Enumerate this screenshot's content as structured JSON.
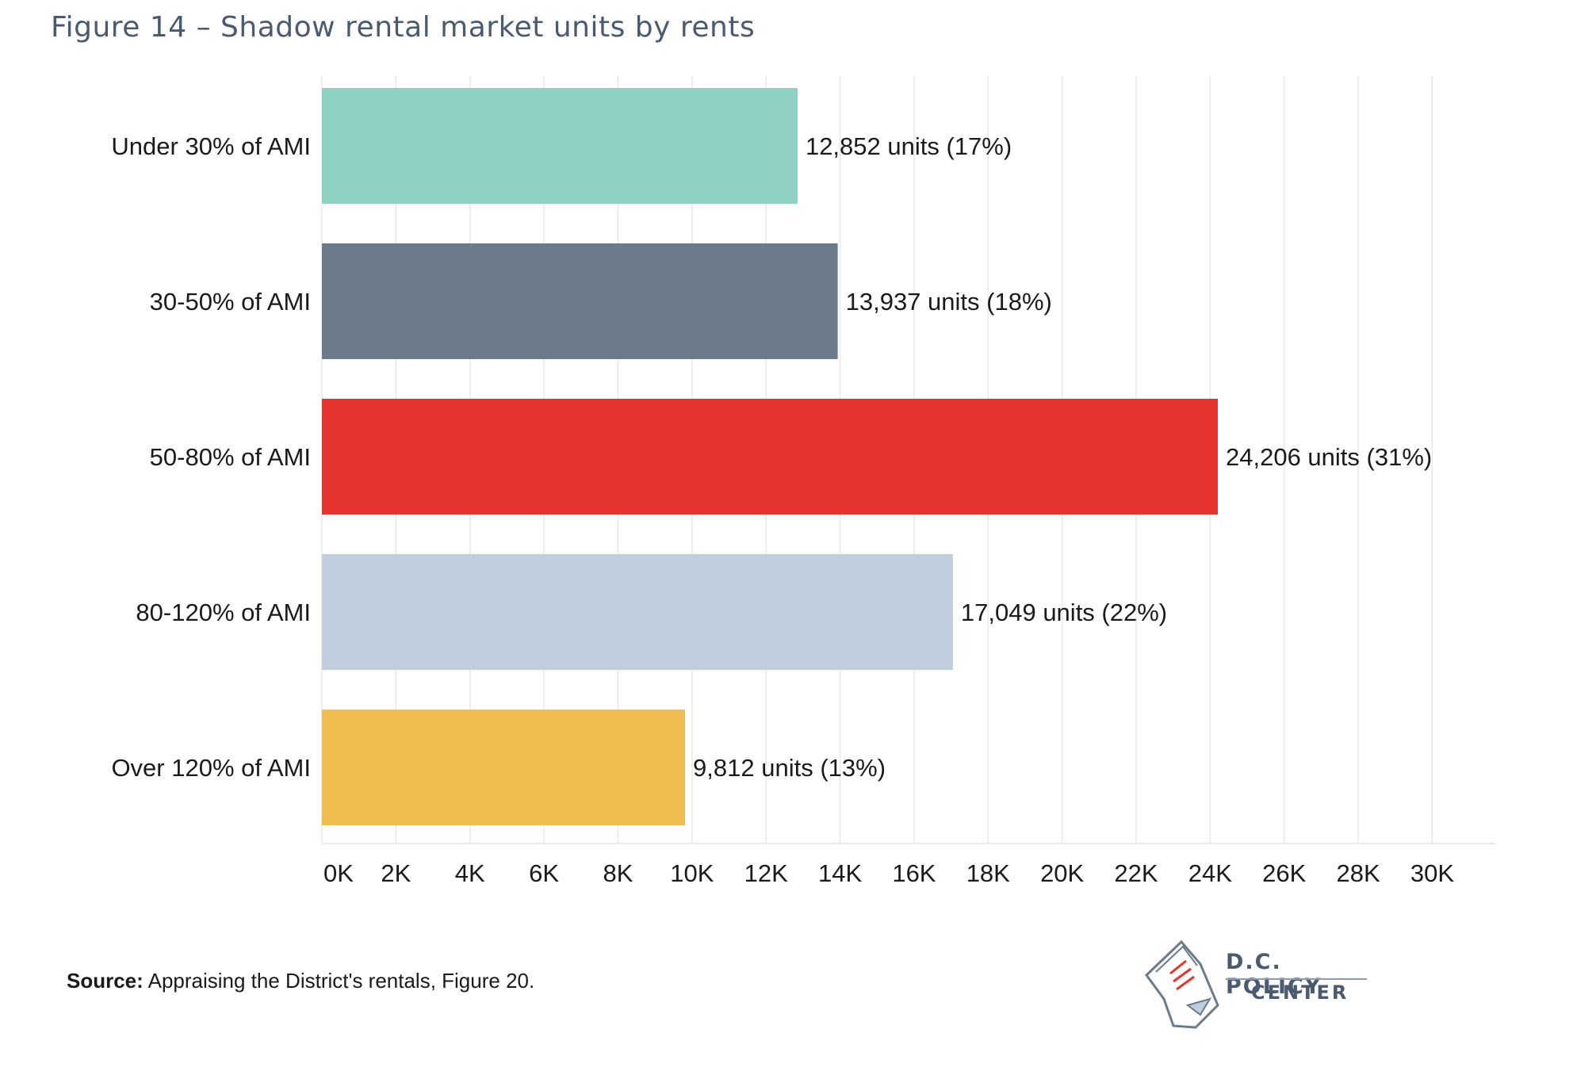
{
  "figure_title": "Figure 14 – Shadow rental market units by rents",
  "source": {
    "prefix": "Source:",
    "text": " Appraising the District's rentals, Figure 20."
  },
  "logo": {
    "line1": "D.C. POLICY",
    "line2": "CENTER"
  },
  "colors": {
    "under30": "#8ed0c4",
    "30_50": "#6c7b8a",
    "50_80": "#e53430",
    "80_120": "#bfcddc",
    "over120": "#f0be4e",
    "grid": "#e8e8e8",
    "logo": "#4a5a70",
    "logo_accent": "#e53430"
  },
  "chart_data": {
    "type": "bar",
    "orientation": "horizontal",
    "title": "Figure 14 – Shadow rental market units by rents",
    "xlabel": "",
    "ylabel": "",
    "xlim": [
      0,
      31500
    ],
    "grid": true,
    "categories": [
      "Under 30% of AMI",
      "30-50% of AMI",
      "50-80% of AMI",
      "80-120% of AMI",
      "Over 120% of AMI"
    ],
    "values": [
      12852,
      13937,
      24206,
      17049,
      9812
    ],
    "data_labels": [
      "12,852 units (17%)",
      "13,937 units (18%)",
      "24,206 units (31%)",
      "17,049 units (22%)",
      "9,812 units (13%)"
    ],
    "bar_colors": [
      "#8ed0c4",
      "#6c7b8a",
      "#e53430",
      "#bfcddc",
      "#f0be4e"
    ],
    "x_ticks": [
      0,
      2000,
      4000,
      6000,
      8000,
      10000,
      12000,
      14000,
      16000,
      18000,
      20000,
      22000,
      24000,
      26000,
      28000,
      30000
    ],
    "x_tick_labels": [
      "0K",
      "2K",
      "4K",
      "6K",
      "8K",
      "10K",
      "12K",
      "14K",
      "16K",
      "18K",
      "20K",
      "22K",
      "24K",
      "26K",
      "28K",
      "30K"
    ]
  }
}
